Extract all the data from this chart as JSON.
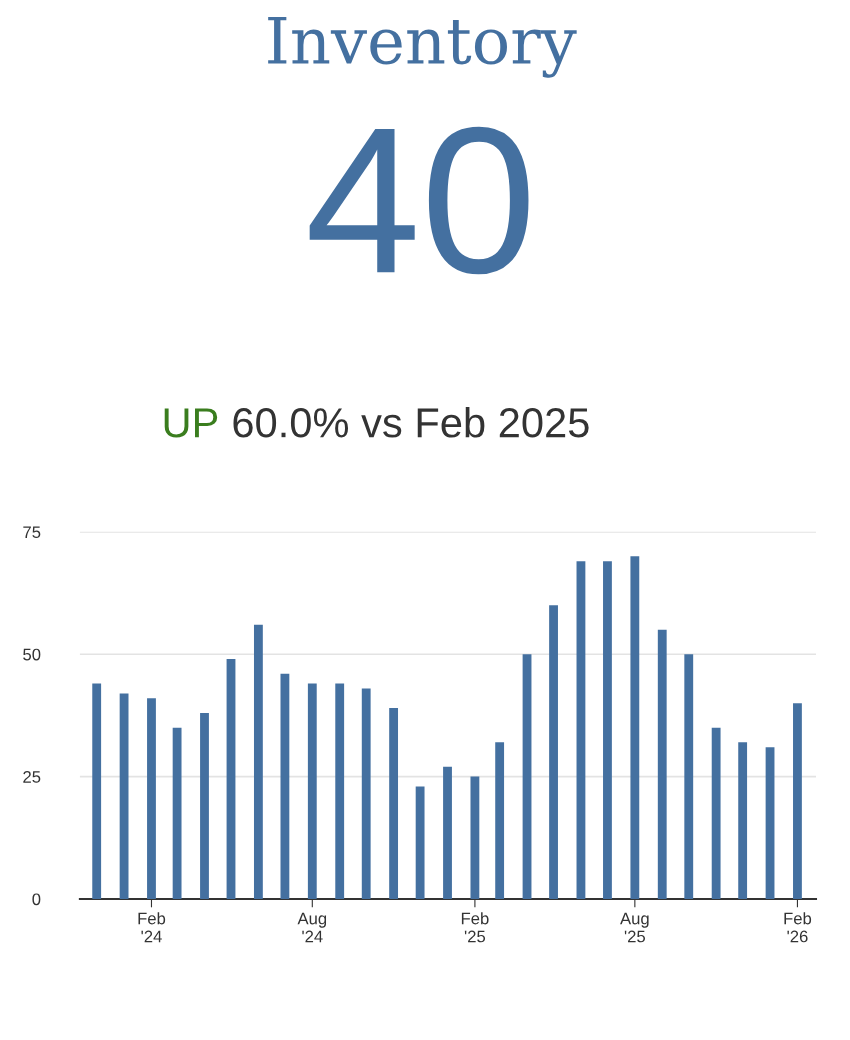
{
  "chart_data": {
    "type": "bar",
    "title": "Inventory",
    "subtitle": "40",
    "annotations": [
      "UP",
      "60.0% vs Feb 2025"
    ],
    "x": [
      "2023-12",
      "2024-01",
      "2024-02",
      "2024-03",
      "2024-04",
      "2024-05",
      "2024-06",
      "2024-07",
      "2024-08",
      "2024-09",
      "2024-10",
      "2024-11",
      "2024-12",
      "2025-01",
      "2025-02",
      "2025-03",
      "2025-04",
      "2025-05",
      "2025-06",
      "2025-07",
      "2025-08",
      "2025-09",
      "2025-10",
      "2025-11",
      "2025-12",
      "2026-01",
      "2026-02"
    ],
    "series": [
      {
        "color": "#4470a0",
        "values": [
          44,
          42,
          41,
          35,
          38,
          49,
          56,
          46,
          44,
          44,
          43,
          39,
          23,
          27,
          25,
          32,
          50,
          60,
          69,
          69,
          70,
          55,
          50,
          35,
          32,
          31,
          40
        ]
      }
    ],
    "xlim": [
      "2023-11-12",
      "2026-02-22"
    ],
    "xticks": [
      {
        "value": "2024-02",
        "label": "Feb\n'24"
      },
      {
        "value": "2024-08",
        "label": "Aug\n'24"
      },
      {
        "value": "2025-02",
        "label": "Feb\n'25"
      },
      {
        "value": "2025-08",
        "label": "Aug\n'25"
      },
      {
        "value": "2026-02",
        "label": "Feb\n'26"
      }
    ],
    "ylim": [
      0,
      75
    ],
    "yticks": [
      0,
      25,
      50,
      75
    ],
    "grid": "y",
    "legend": false
  }
}
